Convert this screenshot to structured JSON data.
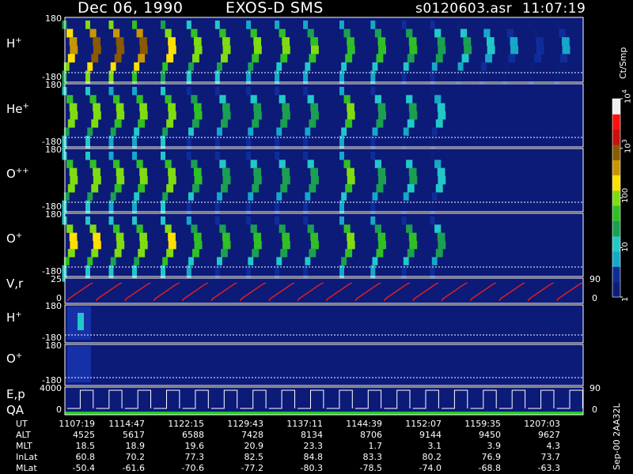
{
  "header": {
    "date": "Dec 06, 1990",
    "instrument": "EXOS-D SMS",
    "file": "s0120603.asr",
    "time": "11:07:19"
  },
  "colorbar": {
    "unit_label": "Ct/Smp",
    "ticks": [
      {
        "label": "1",
        "value": 1
      },
      {
        "label": "10",
        "value": 10
      },
      {
        "label": "100",
        "value": 100
      },
      {
        "label": "10",
        "sup": "3",
        "value": 1000
      },
      {
        "label": "10",
        "sup": "4",
        "value": 10000
      }
    ],
    "colors": [
      "#0b1f7a",
      "#0f2d9a",
      "#16a8c8",
      "#22c8c8",
      "#1aa050",
      "#2fc025",
      "#7fdc10",
      "#ffe000",
      "#c89600",
      "#8a5a00",
      "#c81010",
      "#ff1010",
      "#f0f0f0"
    ]
  },
  "panels": [
    {
      "id": "h-plus",
      "name": "H",
      "sup": "+",
      "ytop": "180",
      "ybot": "-180"
    },
    {
      "id": "he-plus",
      "name": "He",
      "sup": "+",
      "ytop": "180",
      "ybot": "-180"
    },
    {
      "id": "o-plusplus",
      "name": "O",
      "sup": "++",
      "ytop": "180",
      "ybot": "-180"
    },
    {
      "id": "o-plus",
      "name": "O",
      "sup": "+",
      "ytop": "180",
      "ybot": "-180"
    },
    {
      "id": "vr",
      "name": "V,r",
      "ytop": "25",
      "ybot": "0",
      "right_label": "90",
      "right_label2": "0"
    },
    {
      "id": "h-plus-2",
      "name": "H",
      "sup": "+",
      "ytop": "180",
      "ybot": "-180"
    },
    {
      "id": "o-plus-2",
      "name": "O",
      "sup": "+",
      "ytop": "180",
      "ybot": "-180"
    },
    {
      "id": "ep-qa",
      "name": "E,p",
      "name2": "QA",
      "ytop": "4000",
      "ybot": "0",
      "right_label": "90",
      "right_label2": "0"
    }
  ],
  "footer": {
    "rows": [
      {
        "label": "UT",
        "values": [
          "1107:19",
          "1114:47",
          "1122:15",
          "1129:43",
          "1137:11",
          "1144:39",
          "1152:07",
          "1159:35",
          "1207:03"
        ]
      },
      {
        "label": "ALT",
        "values": [
          "4525",
          "5617",
          "6588",
          "7428",
          "8134",
          "8706",
          "9144",
          "9450",
          "9627"
        ]
      },
      {
        "label": "MLT",
        "values": [
          "18.5",
          "18.9",
          "19.6",
          "20.9",
          "23.3",
          "1.7",
          "3.1",
          "3.9",
          "4.3"
        ]
      },
      {
        "label": "InLat",
        "values": [
          "60.8",
          "70.2",
          "77.3",
          "82.5",
          "84.8",
          "83.3",
          "80.2",
          "76.9",
          "73.7"
        ]
      },
      {
        "label": "MLat",
        "values": [
          "-50.4",
          "-61.6",
          "-70.6",
          "-77.2",
          "-80.3",
          "-78.5",
          "-74.0",
          "-68.8",
          "-63.3"
        ]
      }
    ],
    "side_note": "Sep-00  2AA32L"
  },
  "chart_data": {
    "type": "heatmap",
    "title": "Dec 06, 1990   EXOS-D SMS   s0120603.asr  11:07:19",
    "x_ticks": [
      "1107:19",
      "1114:47",
      "1122:15",
      "1129:43",
      "1137:11",
      "1144:39",
      "1152:07",
      "1159:35",
      "1207:03"
    ],
    "colorbar_label": "Ct/Smp",
    "colorbar_range": [
      1,
      10000
    ],
    "colorbar_scale": "log",
    "pitch_angle_ylim": [
      -180,
      180
    ],
    "spin_sweeps_upper_panels": {
      "x_fraction": [
        0.01,
        0.055,
        0.1,
        0.145,
        0.2,
        0.25,
        0.305,
        0.365,
        0.42,
        0.475,
        0.545,
        0.605,
        0.665,
        0.72,
        0.77,
        0.815,
        0.86,
        0.91,
        0.96
      ],
      "peak_count_h_plus": [
        400,
        1200,
        1200,
        1000,
        300,
        120,
        110,
        90,
        80,
        70,
        60,
        60,
        40,
        30,
        20,
        10,
        5,
        3,
        5
      ],
      "peak_count_he_plus": [
        120,
        120,
        100,
        80,
        120,
        40,
        30,
        30,
        30,
        30,
        80,
        30,
        20,
        15,
        0,
        0,
        0,
        0,
        0
      ],
      "peak_count_o_plusplus": [
        120,
        120,
        100,
        80,
        120,
        40,
        30,
        30,
        30,
        30,
        80,
        30,
        20,
        15,
        0,
        0,
        0,
        0,
        0
      ],
      "peak_count_o_plus": [
        200,
        200,
        150,
        120,
        220,
        60,
        50,
        50,
        50,
        50,
        100,
        60,
        40,
        30,
        0,
        0,
        0,
        0,
        0
      ]
    },
    "vr_ylim": [
      0,
      25
    ],
    "ep_ylim": [
      0,
      4000
    ]
  }
}
